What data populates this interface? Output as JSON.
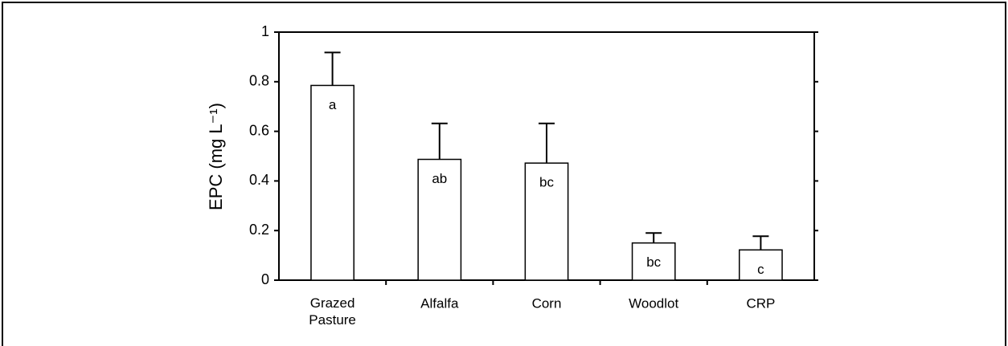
{
  "chart_data": {
    "type": "bar",
    "ylabel": "EPC (mg L⁻¹)",
    "categories": [
      "Grazed Pasture",
      "Alfalfa",
      "Corn",
      "Woodlot",
      "CRP"
    ],
    "values": [
      0.785,
      0.487,
      0.472,
      0.15,
      0.122
    ],
    "errors": [
      0.133,
      0.145,
      0.16,
      0.04,
      0.055
    ],
    "letters": [
      "a",
      "ab",
      "bc",
      "bc",
      "c"
    ],
    "color": "#ffffff",
    "ylim": [
      0,
      1
    ],
    "yticks": [
      0,
      0.2,
      0.4,
      0.6,
      0.8,
      1
    ],
    "grid": false
  }
}
